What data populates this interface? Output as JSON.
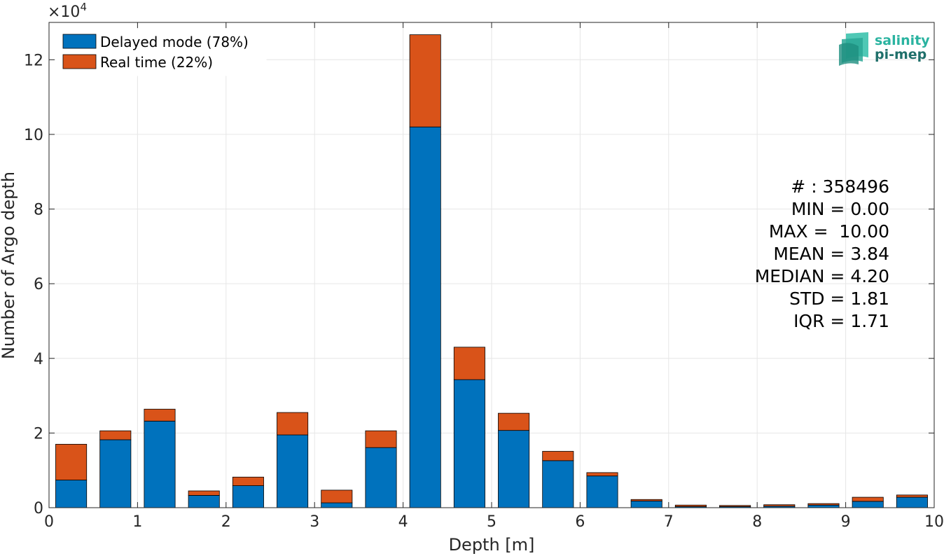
{
  "chart_data": {
    "type": "bar",
    "stacked": true,
    "xlabel": "Depth [m]",
    "ylabel": "Number of Argo depth",
    "y_exponent_label": "×10",
    "y_exponent_power": "4",
    "xlim": [
      0,
      10
    ],
    "ylim": [
      0,
      130000
    ],
    "grid": true,
    "legend_position": "top-left",
    "x_ticks": [
      0,
      1,
      2,
      3,
      4,
      5,
      6,
      7,
      8,
      9,
      10
    ],
    "x_tick_labels": [
      "0",
      "1",
      "2",
      "3",
      "4",
      "5",
      "6",
      "7",
      "8",
      "9",
      "10"
    ],
    "y_ticks": [
      0,
      20000,
      40000,
      60000,
      80000,
      100000,
      120000
    ],
    "y_tick_labels": [
      "0",
      "2",
      "4",
      "6",
      "8",
      "10",
      "12"
    ],
    "bar_width": 0.35,
    "x": [
      0.25,
      0.75,
      1.25,
      1.75,
      2.25,
      2.75,
      3.25,
      3.75,
      4.25,
      4.75,
      5.25,
      5.75,
      6.25,
      6.75,
      7.25,
      7.75,
      8.25,
      8.75,
      9.25,
      9.75
    ],
    "series": [
      {
        "name": "Delayed mode (78%)",
        "color": "#0072BD",
        "values": [
          7400,
          18200,
          23200,
          3300,
          5900,
          19500,
          1300,
          16100,
          102000,
          34300,
          20700,
          12600,
          8500,
          1800,
          300,
          300,
          400,
          700,
          1700,
          2800
        ]
      },
      {
        "name": "Real time (22%)",
        "color": "#D95319",
        "values": [
          9600,
          2400,
          3200,
          1200,
          2300,
          6000,
          3400,
          4500,
          24700,
          8700,
          4600,
          2500,
          900,
          400,
          400,
          300,
          400,
          400,
          1100,
          600
        ]
      }
    ]
  },
  "stats": {
    "lines": [
      "# : 358496",
      "MIN = 0.00",
      "MAX =  10.00",
      "MEAN = 3.84",
      "MEDIAN = 4.20",
      "STD = 1.81",
      "IQR = 1.71"
    ]
  },
  "logo": {
    "line1": "salinity",
    "line2": "pi-mep",
    "color1": "#2ab3a0",
    "color2": "#1f6f6a"
  },
  "colors": {
    "grid": "#e6e6e6",
    "axis": "#262626"
  }
}
